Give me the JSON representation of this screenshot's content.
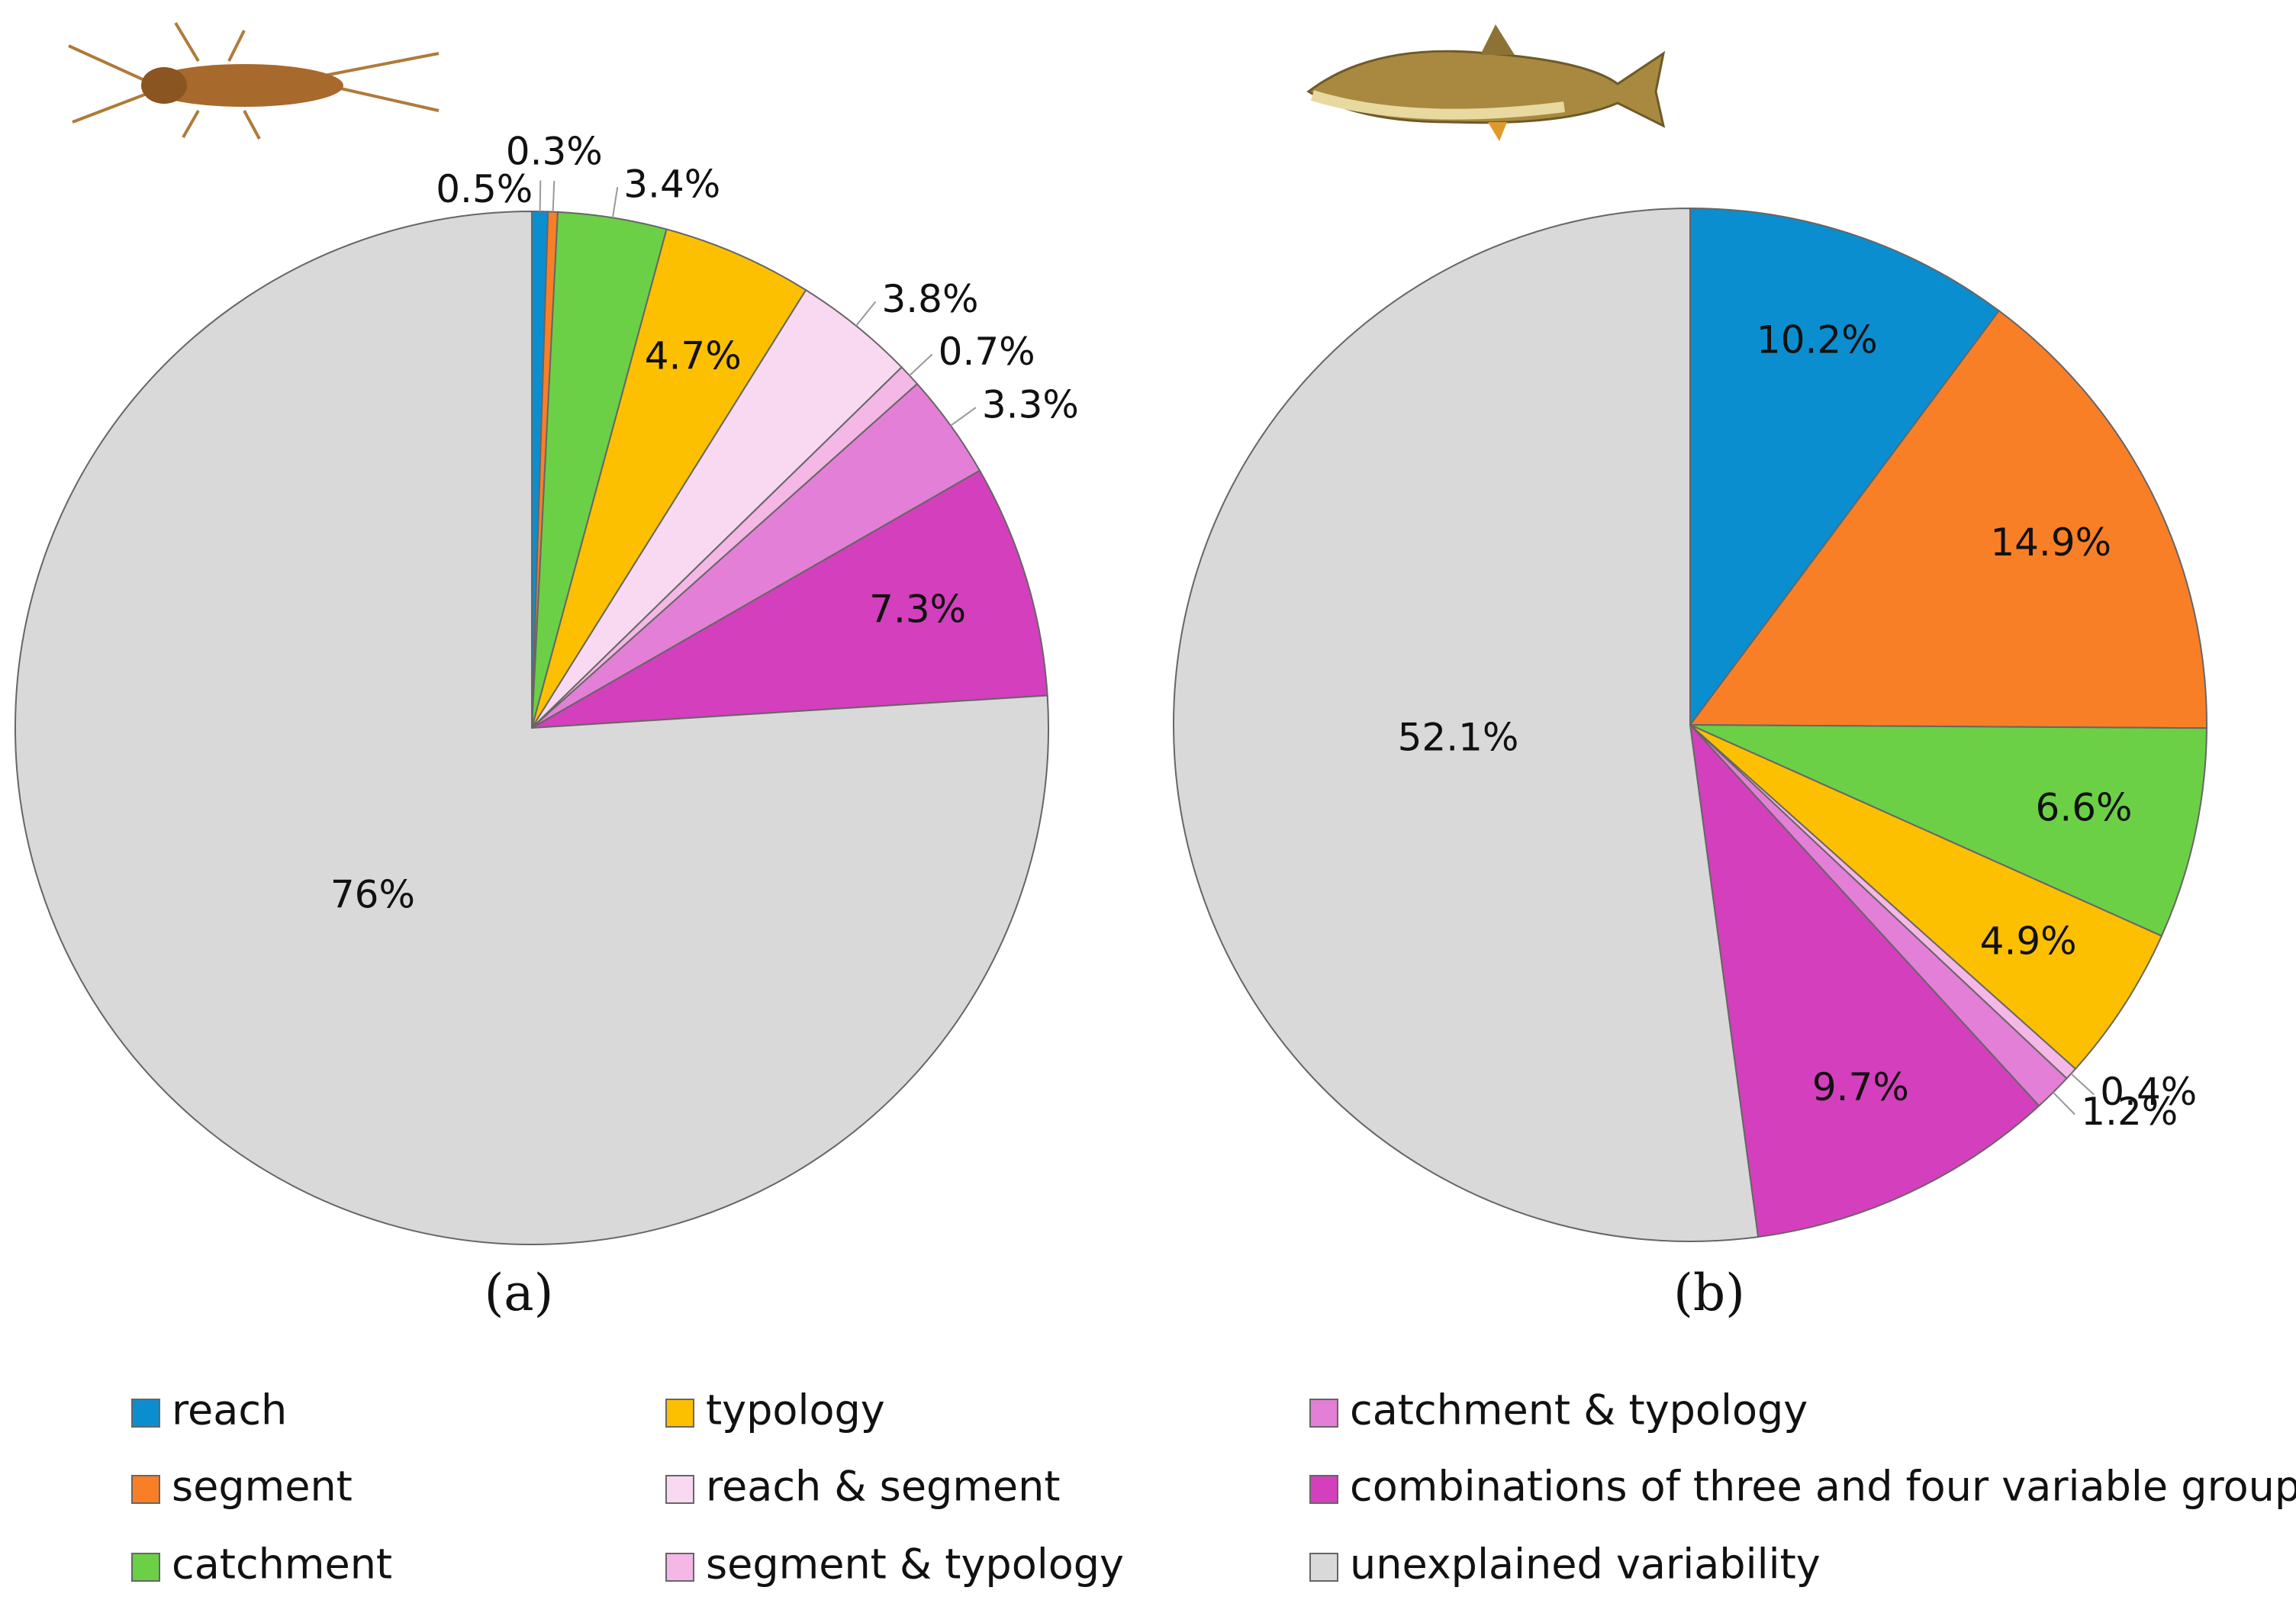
{
  "chart_data": [
    {
      "type": "pie",
      "title": "(a)",
      "categories": [
        "reach",
        "segment",
        "catchment",
        "typology",
        "reach & segment",
        "segment & typology",
        "catchment & typology",
        "combinations of three and four variable groups",
        "unexplained variability"
      ],
      "values": [
        0.5,
        0.3,
        3.4,
        4.7,
        3.8,
        0.7,
        3.3,
        7.3,
        76
      ],
      "value_labels": [
        "0.5%",
        "0.3%",
        "3.4%",
        "4.7%",
        "3.8%",
        "0.7%",
        "3.3%",
        "7.3%",
        "76%"
      ],
      "colors": [
        "#0b8ecf",
        "#f97f27",
        "#6bd045",
        "#fdc000",
        "#f9d9f1",
        "#f4b7e6",
        "#e37fd6",
        "#d43fbd",
        "#d9d9d9"
      ]
    },
    {
      "type": "pie",
      "title": "(b)",
      "categories": [
        "reach",
        "segment",
        "catchment",
        "typology",
        "segment & typology",
        "catchment & typology",
        "combinations of three and four variable groups",
        "unexplained variability"
      ],
      "values": [
        10.2,
        14.9,
        6.6,
        4.9,
        0.4,
        1.2,
        9.7,
        52.1
      ],
      "value_labels": [
        "10.2%",
        "14.9%",
        "6.6%",
        "4.9%",
        "0.4%",
        "1.2%",
        "9.7%",
        "52.1%"
      ],
      "colors": [
        "#0b8ecf",
        "#f97f27",
        "#6bd045",
        "#fdc000",
        "#f4b7e6",
        "#e37fd6",
        "#d43fbd",
        "#d9d9d9"
      ]
    }
  ]
}
